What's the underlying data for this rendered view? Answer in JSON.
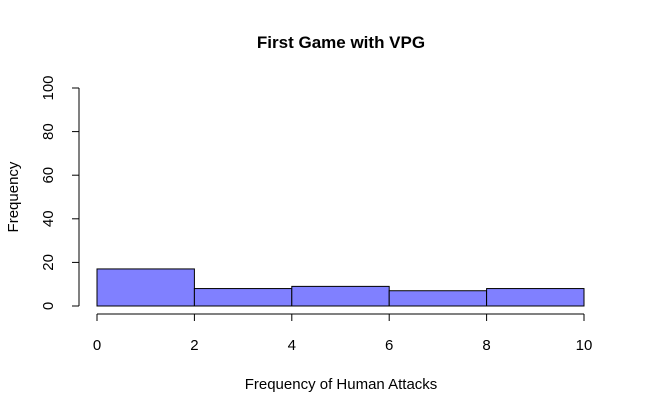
{
  "chart_data": {
    "type": "bar",
    "title": "First Game with VPG",
    "xlabel": "Frequency of Human Attacks",
    "ylabel": "Frequency",
    "bins": [
      {
        "x0": 0,
        "x1": 2,
        "count": 17
      },
      {
        "x0": 2,
        "x1": 4,
        "count": 8
      },
      {
        "x0": 4,
        "x1": 6,
        "count": 9
      },
      {
        "x0": 6,
        "x1": 8,
        "count": 7
      },
      {
        "x0": 8,
        "x1": 10,
        "count": 8
      }
    ],
    "xlim": [
      0,
      10
    ],
    "ylim": [
      0,
      100
    ],
    "xticks": [
      "0",
      "2",
      "4",
      "6",
      "8",
      "10"
    ],
    "yticks": [
      "0",
      "20",
      "40",
      "60",
      "80",
      "100"
    ],
    "bar_color": "#8080ff",
    "grid": false
  }
}
